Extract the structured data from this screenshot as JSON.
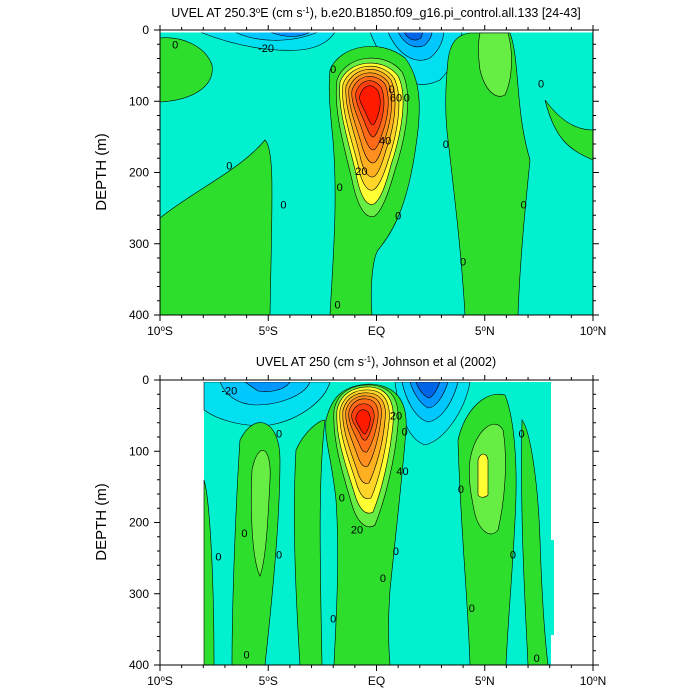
{
  "chart_data": [
    {
      "type": "heatmap",
      "title_prefix": "UVEL AT 250.3",
      "title_degree": "o",
      "title_mid": "E (cm s",
      "title_exp": "-1",
      "title_suffix": "), b.e20.B1850.f09_g16.pi_control.all.133 [24-43]",
      "ylabel": "DEPTH (m)",
      "xlim": [
        -10,
        10
      ],
      "ylim": [
        0,
        400
      ],
      "y_inverted": true,
      "x_ticks": [
        {
          "value": -10,
          "num": "10",
          "deg": "o",
          "hemi": "S"
        },
        {
          "value": -5,
          "num": "5",
          "deg": "o",
          "hemi": "S"
        },
        {
          "value": 0,
          "num": "EQ",
          "deg": "",
          "hemi": ""
        },
        {
          "value": 5,
          "num": "5",
          "deg": "o",
          "hemi": "N"
        },
        {
          "value": 10,
          "num": "10",
          "deg": "o",
          "hemi": "N"
        }
      ],
      "y_ticks": [
        0,
        100,
        200,
        300,
        400
      ],
      "data_extent_x": [
        -10,
        10
      ],
      "data_extent_y": [
        5,
        400
      ],
      "max_core": {
        "lat": 0.0,
        "depth": 100,
        "speed": 90
      },
      "contour_labels": [
        {
          "lat": -9.3,
          "depth": 20,
          "text": "0"
        },
        {
          "lat": -5.1,
          "depth": 25,
          "text": "-20"
        },
        {
          "lat": -6.8,
          "depth": 190,
          "text": "0"
        },
        {
          "lat": -4.3,
          "depth": 245,
          "text": "0"
        },
        {
          "lat": -2.0,
          "depth": 55,
          "text": "0"
        },
        {
          "lat": -1.7,
          "depth": 220,
          "text": "0"
        },
        {
          "lat": -1.8,
          "depth": 385,
          "text": "0"
        },
        {
          "lat": 0.7,
          "depth": 83,
          "text": "0"
        },
        {
          "lat": 1.4,
          "depth": 95,
          "text": "0"
        },
        {
          "lat": 0.9,
          "depth": 95,
          "text": "60"
        },
        {
          "lat": 0.4,
          "depth": 155,
          "text": "40"
        },
        {
          "lat": -0.7,
          "depth": 198,
          "text": "20"
        },
        {
          "lat": 3.2,
          "depth": 160,
          "text": "0"
        },
        {
          "lat": 4.0,
          "depth": 325,
          "text": "0"
        },
        {
          "lat": 1.0,
          "depth": 260,
          "text": "0"
        },
        {
          "lat": 6.8,
          "depth": 245,
          "text": "0"
        },
        {
          "lat": 7.6,
          "depth": 75,
          "text": "0"
        }
      ]
    },
    {
      "type": "heatmap",
      "title_prefix": "UVEL AT 250 (cm s",
      "title_exp": "-1",
      "title_suffix": "), Johnson et al (2002)",
      "ylabel": "DEPTH (m)",
      "xlim": [
        -10,
        10
      ],
      "ylim": [
        0,
        400
      ],
      "y_inverted": true,
      "x_ticks": [
        {
          "value": -10,
          "num": "10",
          "deg": "o",
          "hemi": "S"
        },
        {
          "value": -5,
          "num": "5",
          "deg": "o",
          "hemi": "S"
        },
        {
          "value": 0,
          "num": "EQ",
          "deg": "",
          "hemi": ""
        },
        {
          "value": 5,
          "num": "5",
          "deg": "o",
          "hemi": "N"
        },
        {
          "value": 10,
          "num": "10",
          "deg": "o",
          "hemi": "N"
        }
      ],
      "y_ticks": [
        0,
        100,
        200,
        300,
        400
      ],
      "data_extent_x": [
        -8,
        8.2
      ],
      "data_extent_y": [
        5,
        400
      ],
      "max_core": {
        "lat": -0.3,
        "depth": 72,
        "speed": 90
      },
      "contour_labels": [
        {
          "lat": -6.8,
          "depth": 15,
          "text": "-20"
        },
        {
          "lat": -4.5,
          "depth": 75,
          "text": "0"
        },
        {
          "lat": -6.1,
          "depth": 215,
          "text": "0"
        },
        {
          "lat": -7.3,
          "depth": 248,
          "text": "0"
        },
        {
          "lat": -4.5,
          "depth": 245,
          "text": "0"
        },
        {
          "lat": -6.0,
          "depth": 385,
          "text": "0"
        },
        {
          "lat": -1.6,
          "depth": 165,
          "text": "0"
        },
        {
          "lat": -2.0,
          "depth": 335,
          "text": "0"
        },
        {
          "lat": -0.9,
          "depth": 210,
          "text": "20"
        },
        {
          "lat": 1.2,
          "depth": 128,
          "text": "40"
        },
        {
          "lat": 0.9,
          "depth": 50,
          "text": "20"
        },
        {
          "lat": 1.3,
          "depth": 72,
          "text": "0"
        },
        {
          "lat": 0.9,
          "depth": 240,
          "text": "0"
        },
        {
          "lat": 0.3,
          "depth": 278,
          "text": "0"
        },
        {
          "lat": 3.9,
          "depth": 153,
          "text": "0"
        },
        {
          "lat": 4.4,
          "depth": 320,
          "text": "0"
        },
        {
          "lat": 6.3,
          "depth": 245,
          "text": "0"
        },
        {
          "lat": 6.7,
          "depth": 75,
          "text": "0"
        },
        {
          "lat": 7.4,
          "depth": 390,
          "text": "0"
        }
      ]
    }
  ],
  "colors": {
    "background_cyan": "#00f0d0",
    "weak_negative": "#00e0f0",
    "negative_1": "#00c8ff",
    "negative_2": "#0096ff",
    "negative_3": "#0064e6",
    "green_light": "#66ee44",
    "green_mid": "#2dde2d",
    "yellow": "#ffff33",
    "orange": "#ffa020",
    "red": "#ff1a00",
    "contour": "#000000"
  }
}
